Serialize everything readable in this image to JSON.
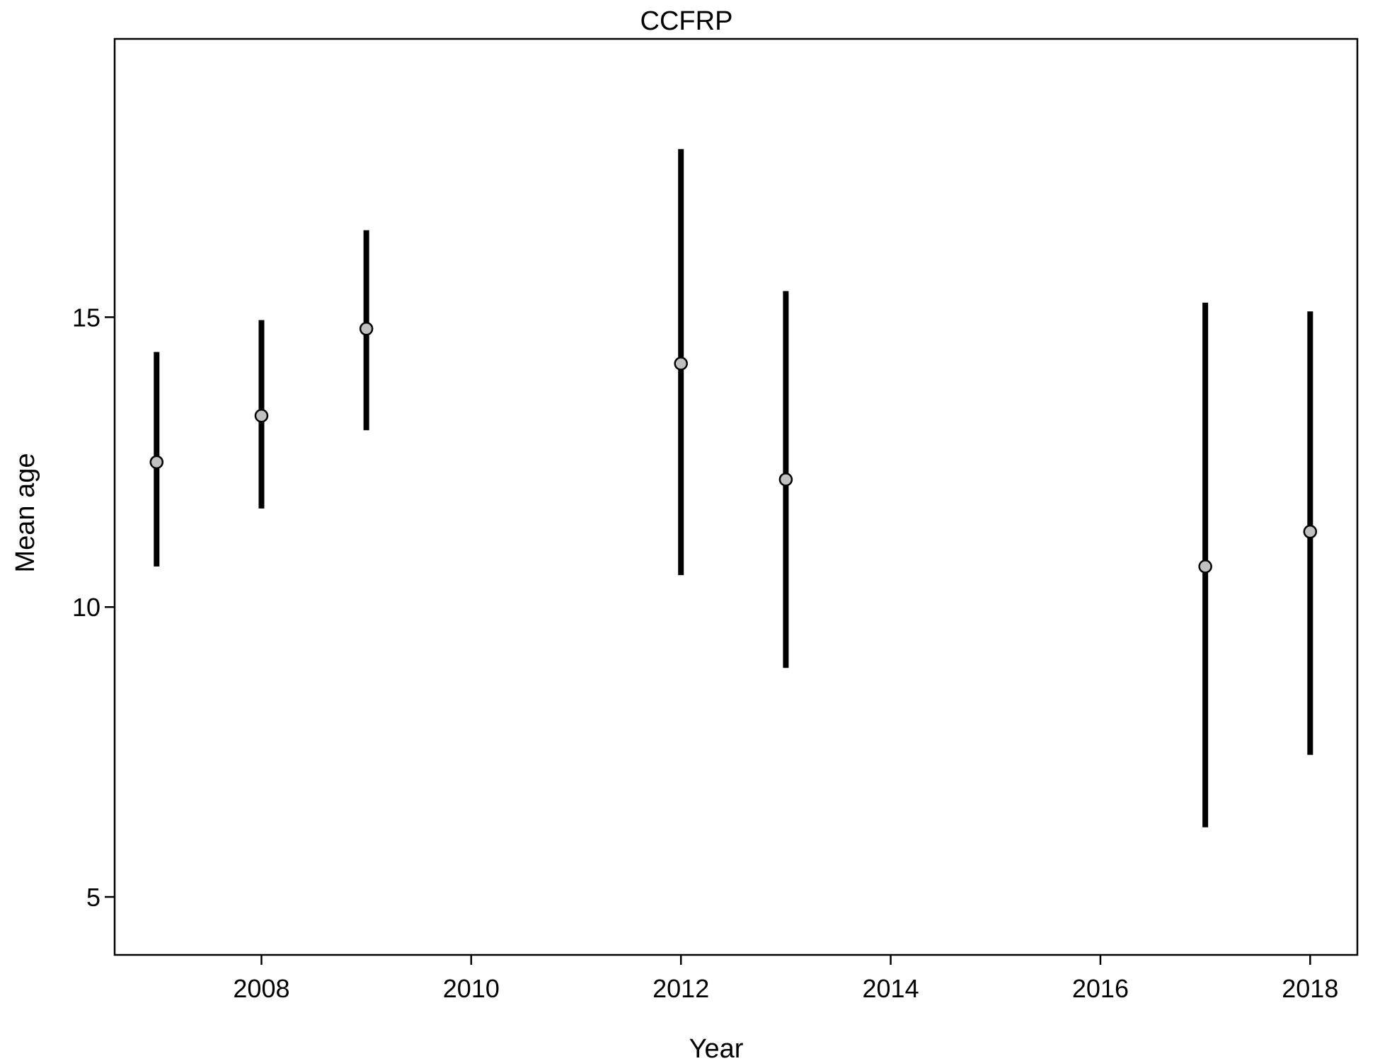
{
  "chart_data": {
    "type": "scatter",
    "title": "CCFRP",
    "xlabel": "Year",
    "ylabel": "Mean age",
    "xlim": [
      2006.6,
      2018.45
    ],
    "ylim": [
      4.0,
      19.8
    ],
    "x_ticks": [
      2008,
      2010,
      2012,
      2014,
      2016,
      2018
    ],
    "y_ticks": [
      5,
      10,
      15
    ],
    "grid": false,
    "legend": "none",
    "series": [
      {
        "points": [
          {
            "x": 2007,
            "y": 12.5,
            "lower": 10.7,
            "upper": 14.4
          },
          {
            "x": 2008,
            "y": 13.3,
            "lower": 11.7,
            "upper": 14.95
          },
          {
            "x": 2009,
            "y": 14.8,
            "lower": 13.05,
            "upper": 16.5
          },
          {
            "x": 2012,
            "y": 14.2,
            "lower": 10.55,
            "upper": 17.9
          },
          {
            "x": 2013,
            "y": 12.2,
            "lower": 8.95,
            "upper": 15.45
          },
          {
            "x": 2017,
            "y": 10.7,
            "lower": 6.2,
            "upper": 15.25
          },
          {
            "x": 2018,
            "y": 11.3,
            "lower": 7.45,
            "upper": 15.1
          }
        ]
      }
    ],
    "colors": {
      "errorbar": "#000000",
      "point_fill": "#c0c0c0",
      "point_stroke": "#000000",
      "frame": "#000000"
    }
  }
}
